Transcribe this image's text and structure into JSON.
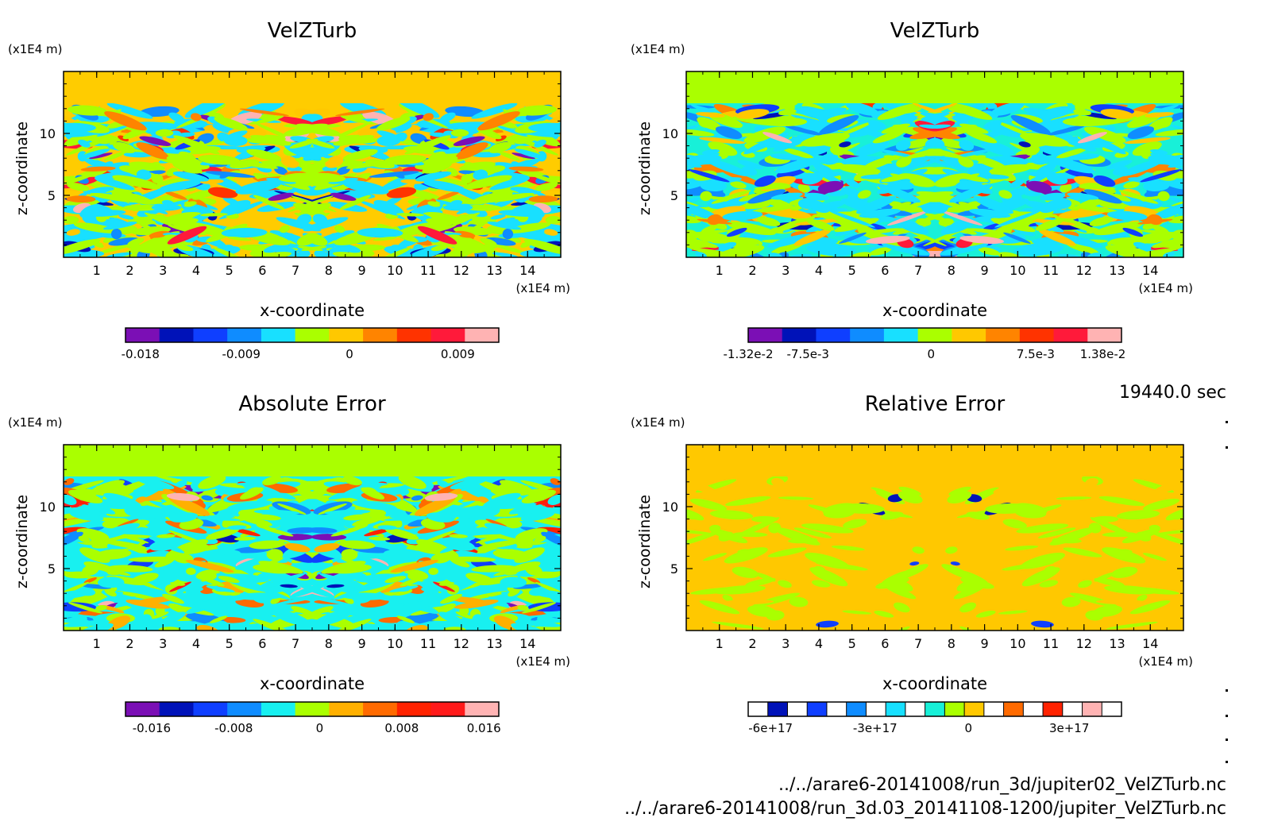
{
  "timestamp": "19440.0 sec",
  "files": [
    "../../arare6-20141008/run_3d/jupiter02_VelZTurb.nc",
    "../../arare6-20141008/run_3d.03_20141108-1200/jupiter_VelZTurb.nc"
  ],
  "chart_data": [
    {
      "type": "heatmap",
      "title": "VelZTurb",
      "xlabel": "x-coordinate",
      "ylabel": "z-coordinate",
      "x_unit": "(x1E4 m)",
      "y_unit": "(x1E4 m)",
      "xticks": [
        "1",
        "2",
        "3",
        "4",
        "5",
        "6",
        "7",
        "8",
        "9",
        "10",
        "11",
        "12",
        "13",
        "14"
      ],
      "yticks": [
        "5",
        "10"
      ],
      "xlim": [
        0,
        15
      ],
      "ylim": [
        0,
        15
      ],
      "background": "#ffcc00",
      "top_band": "#ffcc00",
      "palette": [
        "#7b0fb5",
        "#0012b8",
        "#0f3fff",
        "#0f8cff",
        "#18e0ff",
        "#aaff00",
        "#ffc800",
        "#ff8400",
        "#ff3300",
        "#ff1a3a",
        "#ffb3b3"
      ],
      "levels": [
        -0.018,
        -0.0135,
        -0.009,
        -0.0045,
        -0.002,
        0,
        0.002,
        0.0045,
        0.009,
        0.0135,
        0.018
      ],
      "colorbar_labels": [
        "-0.018",
        "-0.009",
        "0",
        "0.009"
      ],
      "colorbar_label_positions": [
        0.04,
        0.31,
        0.6,
        0.89
      ]
    },
    {
      "type": "heatmap",
      "title": "VelZTurb",
      "xlabel": "x-coordinate",
      "ylabel": "z-coordinate",
      "x_unit": "(x1E4 m)",
      "y_unit": "(x1E4 m)",
      "xticks": [
        "1",
        "2",
        "3",
        "4",
        "5",
        "6",
        "7",
        "8",
        "9",
        "10",
        "11",
        "12",
        "13",
        "14"
      ],
      "yticks": [
        "5",
        "10"
      ],
      "xlim": [
        0,
        15
      ],
      "ylim": [
        0,
        15
      ],
      "background": "#18f0d8",
      "top_band": "#aaff00",
      "palette": [
        "#7b0fb5",
        "#0012b8",
        "#0f3fff",
        "#0f8cff",
        "#18e0ff",
        "#aaff00",
        "#ffc800",
        "#ff8400",
        "#ff3300",
        "#ff1a3a",
        "#ffb3b3"
      ],
      "levels": [
        -0.0132,
        -0.01,
        -0.0075,
        -0.005,
        -0.0025,
        0,
        0.0025,
        0.005,
        0.0075,
        0.01,
        0.0138
      ],
      "colorbar_labels": [
        "-1.32e-2",
        "-7.5e-3",
        "0",
        "7.5e-3",
        "1.38e-2"
      ],
      "colorbar_label_positions": [
        0.0,
        0.16,
        0.49,
        0.77,
        0.95
      ]
    },
    {
      "type": "heatmap",
      "title": "Absolute Error",
      "xlabel": "x-coordinate",
      "ylabel": "z-coordinate",
      "x_unit": "(x1E4 m)",
      "y_unit": "(x1E4 m)",
      "xticks": [
        "1",
        "2",
        "3",
        "4",
        "5",
        "6",
        "7",
        "8",
        "9",
        "10",
        "11",
        "12",
        "13",
        "14"
      ],
      "yticks": [
        "5",
        "10"
      ],
      "xlim": [
        0,
        15
      ],
      "ylim": [
        0,
        15
      ],
      "background": "#18f0f0",
      "top_band": "#aaff00",
      "palette": [
        "#7b0fb5",
        "#0012b8",
        "#0f3fff",
        "#0f8cff",
        "#18f0f0",
        "#aaff00",
        "#ffb000",
        "#ff6a00",
        "#ff2200",
        "#ff1a1a",
        "#ffb3b3"
      ],
      "levels": [
        -0.018,
        -0.016,
        -0.012,
        -0.008,
        -0.004,
        0,
        0.004,
        0.008,
        0.012,
        0.016,
        0.018
      ],
      "colorbar_labels": [
        "-0.016",
        "-0.008",
        "0",
        "0.008",
        "0.016"
      ],
      "colorbar_label_positions": [
        0.07,
        0.29,
        0.52,
        0.74,
        0.96
      ]
    },
    {
      "type": "heatmap",
      "title": "Relative Error",
      "xlabel": "x-coordinate",
      "ylabel": "z-coordinate",
      "x_unit": "(x1E4 m)",
      "y_unit": "(x1E4 m)",
      "xticks": [
        "1",
        "2",
        "3",
        "4",
        "5",
        "6",
        "7",
        "8",
        "9",
        "10",
        "11",
        "12",
        "13",
        "14"
      ],
      "yticks": [
        "5",
        "10"
      ],
      "xlim": [
        0,
        15
      ],
      "ylim": [
        0,
        15
      ],
      "background": "#ffc800",
      "top_band": "#ffc800",
      "palette": [
        "#ffffff",
        "#0012b8",
        "#ffffff",
        "#0f3fff",
        "#ffffff",
        "#0f8cff",
        "#ffffff",
        "#18e0ff",
        "#ffffff",
        "#18f0d8",
        "#aaff00",
        "#ffc800",
        "#ffffff",
        "#ff6a00",
        "#ffffff",
        "#ff2200",
        "#ffffff",
        "#ffb3b3",
        "#ffffff"
      ],
      "levels": [
        -6e+17,
        -5.5e+17,
        -4e+17,
        -3.5e+17,
        -3e+17,
        -2.5e+17,
        -2e+17,
        -1.5e+17,
        -1e+17,
        -5e+16,
        0,
        5e+16,
        1e+17,
        1.5e+17,
        2e+17,
        2.5e+17,
        3e+17,
        3.5e+17,
        4e+17
      ],
      "colorbar_labels": [
        "-6e+17",
        "-3e+17",
        "0",
        "3e+17"
      ],
      "colorbar_label_positions": [
        0.06,
        0.34,
        0.59,
        0.86
      ]
    }
  ]
}
